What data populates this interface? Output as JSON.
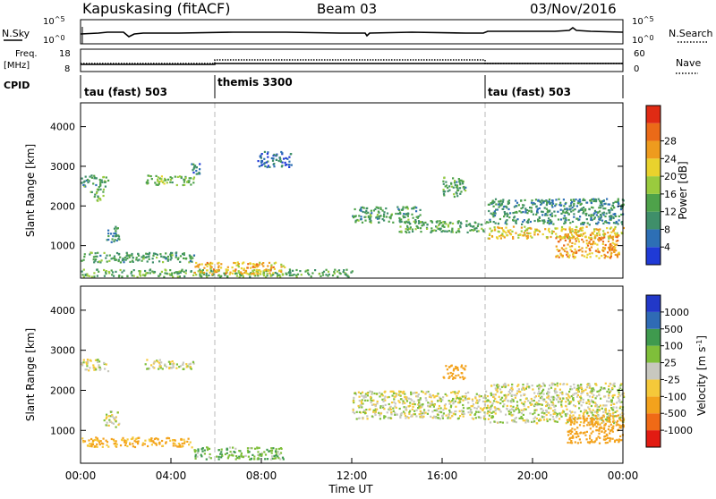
{
  "header": {
    "station": "Kapuskasing (fitACF)",
    "beam": "Beam 03",
    "date": "03/Nov/2016"
  },
  "strips": {
    "nsky_label": "N.Sky",
    "nsearch_label": "N.Search",
    "freq_label_1": "Freq.",
    "freq_label_2": "[MHz]",
    "nave_label": "Nave",
    "cpid_label": "CPID",
    "nsky_ticks": [
      "10^5",
      "10^0"
    ],
    "nsearch_ticks": [
      "10^5",
      "10^0"
    ],
    "freq_ticks": [
      "18",
      "8"
    ],
    "nave_ticks": [
      "60",
      "0"
    ],
    "cpid_segments": [
      {
        "label": "tau (fast) 503",
        "start_hour": 0,
        "end_hour": 6
      },
      {
        "label": "themis 3300",
        "start_hour": 6,
        "end_hour": 18
      },
      {
        "label": "tau (fast) 503",
        "start_hour": 18,
        "end_hour": 24
      }
    ]
  },
  "axes": {
    "xlabel": "Time UT",
    "x_ticks": [
      "00:00",
      "04:00",
      "08:00",
      "12:00",
      "16:00",
      "20:00",
      "00:00"
    ],
    "ylabel": "Slant Range [km]",
    "y_ticks": [
      "1000",
      "2000",
      "3000",
      "4000"
    ]
  },
  "colors": {
    "power": [
      "#1f3ad6",
      "#2d6fb5",
      "#3f8f6a",
      "#4ea24a",
      "#9acb3e",
      "#e9d22d",
      "#ee9b1e",
      "#eb6a18",
      "#e02b14"
    ],
    "velocity": [
      "#e21b12",
      "#f06a16",
      "#f3a21c",
      "#f5c93a",
      "#c8c8bf",
      "#7fbf3a",
      "#3f9a4e",
      "#2f6bb5",
      "#2238c8"
    ],
    "dashed_lines": "#b8b8b8"
  },
  "colorbars": {
    "power": {
      "label": "Power [dB]",
      "ticks": [
        "4",
        "8",
        "12",
        "16",
        "20",
        "24",
        "28"
      ]
    },
    "velocity": {
      "label": "Velocity [m s^-1]",
      "ticks": [
        "-1000",
        "-500",
        "-100",
        "-25",
        "25",
        "100",
        "500",
        "1000"
      ]
    }
  },
  "chart_data": [
    {
      "type": "heatmap",
      "title": "Power [dB]",
      "xlabel": "Time UT",
      "ylabel": "Slant Range [km]",
      "xlim": [
        0,
        24
      ],
      "ylim": [
        180,
        4600
      ],
      "cpid_switch_hours": [
        6,
        18
      ],
      "scatter_regions": [
        {
          "t0": 0.0,
          "t1": 1.2,
          "r0": 2500,
          "r1": 2800,
          "value_db": 12
        },
        {
          "t0": 0.4,
          "t1": 1.0,
          "r0": 2150,
          "r1": 2450,
          "value_db": 14
        },
        {
          "t0": 1.1,
          "t1": 1.7,
          "r0": 1100,
          "r1": 1500,
          "value_db": 10
        },
        {
          "t0": 2.8,
          "t1": 5.0,
          "r0": 2550,
          "r1": 2800,
          "value_db": 16
        },
        {
          "t0": 4.8,
          "t1": 5.3,
          "r0": 2800,
          "r1": 3100,
          "value_db": 8
        },
        {
          "t0": 0.0,
          "t1": 5.0,
          "r0": 600,
          "r1": 850,
          "value_db": 12
        },
        {
          "t0": 0.0,
          "t1": 12.0,
          "r0": 230,
          "r1": 420,
          "value_db": 14
        },
        {
          "t0": 5.0,
          "t1": 9.0,
          "r0": 300,
          "r1": 600,
          "value_db": 24
        },
        {
          "t0": 7.8,
          "t1": 9.3,
          "r0": 3000,
          "r1": 3400,
          "value_db": 6
        },
        {
          "t0": 12.0,
          "t1": 15.0,
          "r0": 1600,
          "r1": 2000,
          "value_db": 12
        },
        {
          "t0": 14.0,
          "t1": 18.0,
          "r0": 1350,
          "r1": 1650,
          "value_db": 14
        },
        {
          "t0": 16.0,
          "t1": 17.0,
          "r0": 2250,
          "r1": 2750,
          "value_db": 12
        },
        {
          "t0": 18.0,
          "t1": 24.0,
          "r0": 1200,
          "r1": 1500,
          "value_db": 22
        },
        {
          "t0": 18.0,
          "t1": 24.0,
          "r0": 1550,
          "r1": 2200,
          "value_db": 10
        },
        {
          "t0": 21.0,
          "t1": 23.8,
          "r0": 700,
          "r1": 1300,
          "value_db": 26
        }
      ]
    },
    {
      "type": "heatmap",
      "title": "Velocity [m s^-1]",
      "xlabel": "Time UT",
      "ylabel": "Slant Range [km]",
      "xlim": [
        0,
        24
      ],
      "ylim": [
        180,
        4600
      ],
      "cpid_switch_hours": [
        6,
        18
      ],
      "scatter_regions": [
        {
          "t0": 0.0,
          "t1": 1.2,
          "r0": 2500,
          "r1": 2800,
          "value_ms": 0
        },
        {
          "t0": 2.8,
          "t1": 5.0,
          "r0": 2550,
          "r1": 2800,
          "value_ms": 0
        },
        {
          "t0": 1.0,
          "t1": 1.7,
          "r0": 1100,
          "r1": 1500,
          "value_ms": 0
        },
        {
          "t0": 0.0,
          "t1": 5.0,
          "r0": 600,
          "r1": 850,
          "value_ms": -120
        },
        {
          "t0": 5.0,
          "t1": 9.0,
          "r0": 300,
          "r1": 600,
          "value_ms": 80
        },
        {
          "t0": 12.0,
          "t1": 18.0,
          "r0": 1300,
          "r1": 2000,
          "value_ms": 0
        },
        {
          "t0": 16.0,
          "t1": 17.0,
          "r0": 2300,
          "r1": 2650,
          "value_ms": -400
        },
        {
          "t0": 18.0,
          "t1": 24.0,
          "r0": 1200,
          "r1": 2200,
          "value_ms": 0
        },
        {
          "t0": 21.5,
          "t1": 24.0,
          "r0": 700,
          "r1": 1400,
          "value_ms": -300
        }
      ]
    }
  ]
}
